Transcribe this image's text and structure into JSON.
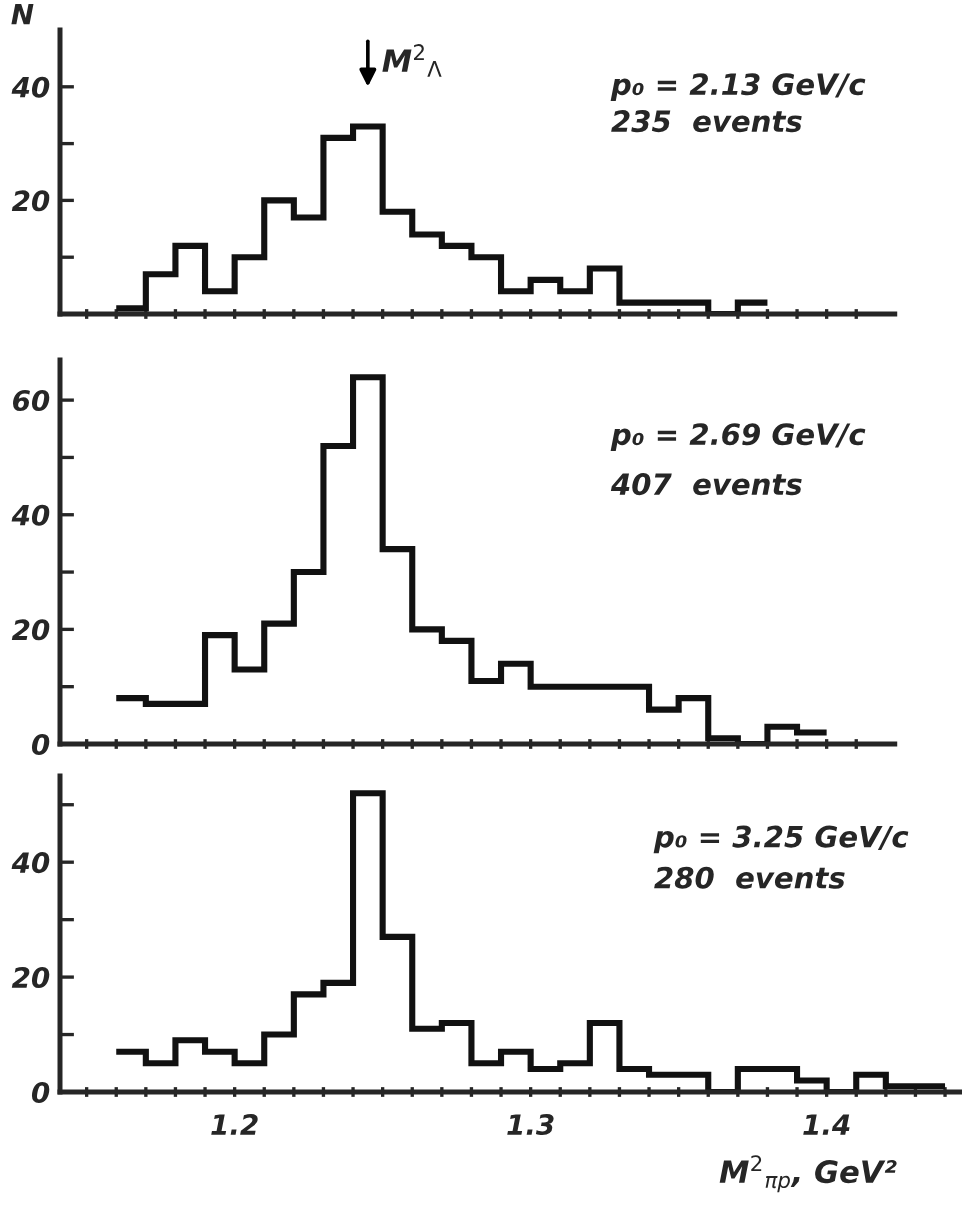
{
  "chart_data": [
    {
      "type": "histogram",
      "color": "#111111",
      "ylabel": "N",
      "bins": [
        1.16,
        1.17,
        1.18,
        1.19,
        1.2,
        1.21,
        1.22,
        1.23,
        1.24,
        1.25,
        1.26,
        1.27,
        1.28,
        1.29,
        1.3,
        1.31,
        1.32,
        1.33,
        1.34,
        1.35,
        1.36,
        1.37,
        1.38
      ],
      "values": [
        1,
        7,
        12,
        4,
        10,
        20,
        17,
        31,
        33,
        18,
        14,
        12,
        10,
        4,
        6,
        4,
        8,
        2,
        2,
        2,
        0,
        2
      ],
      "xlim": [
        1.141,
        1.423
      ],
      "xticks": [
        {
          "value": 1.15,
          "label": null
        },
        {
          "value": 1.16,
          "label": null
        },
        {
          "value": 1.17,
          "label": null
        },
        {
          "value": 1.18,
          "label": null
        },
        {
          "value": 1.19,
          "label": null
        },
        1.2,
        {
          "value": 1.21,
          "label": null
        },
        {
          "value": 1.22,
          "label": null
        },
        {
          "value": 1.23,
          "label": null
        },
        {
          "value": 1.24,
          "label": null
        },
        {
          "value": 1.25,
          "label": null
        },
        {
          "value": 1.26,
          "label": null
        },
        {
          "value": 1.27,
          "label": null
        },
        {
          "value": 1.28,
          "label": null
        },
        {
          "value": 1.29,
          "label": null
        },
        1.3,
        {
          "value": 1.31,
          "label": null
        },
        {
          "value": 1.32,
          "label": null
        },
        {
          "value": 1.33,
          "label": null
        },
        {
          "value": 1.34,
          "label": null
        },
        {
          "value": 1.35,
          "label": null
        },
        {
          "value": 1.36,
          "label": null
        },
        {
          "value": 1.37,
          "label": null
        },
        {
          "value": 1.38,
          "label": null
        },
        {
          "value": 1.39,
          "label": null
        },
        1.4,
        {
          "value": 1.41,
          "label": null
        }
      ],
      "ylim": [
        0,
        50
      ],
      "yticks": [
        {
          "value": 10,
          "label": null
        },
        20,
        {
          "value": 30,
          "label": null
        },
        40
      ],
      "tick_labels": "y",
      "ref_lines": [
        {
          "axis": "x",
          "value": 1.245,
          "label": "M$^{2}$$_{Λ}$"
        }
      ],
      "annotations": [
        "p₀ = 2.13 GeV/c",
        "235  events"
      ]
    },
    {
      "type": "histogram",
      "color": "#111111",
      "bins": [
        1.16,
        1.17,
        1.18,
        1.19,
        1.2,
        1.21,
        1.22,
        1.23,
        1.24,
        1.25,
        1.26,
        1.27,
        1.28,
        1.29,
        1.3,
        1.31,
        1.32,
        1.33,
        1.34,
        1.35,
        1.36,
        1.37,
        1.38,
        1.39,
        1.4
      ],
      "values": [
        8,
        7,
        7,
        19,
        13,
        21,
        30,
        52,
        64,
        34,
        20,
        18,
        11,
        14,
        10,
        10,
        10,
        10,
        6,
        8,
        1,
        0,
        3,
        2
      ],
      "xlim": [
        1.141,
        1.423
      ],
      "xticks": [
        {
          "value": 1.15,
          "label": null
        },
        {
          "value": 1.16,
          "label": null
        },
        {
          "value": 1.17,
          "label": null
        },
        {
          "value": 1.18,
          "label": null
        },
        {
          "value": 1.19,
          "label": null
        },
        1.2,
        {
          "value": 1.21,
          "label": null
        },
        {
          "value": 1.22,
          "label": null
        },
        {
          "value": 1.23,
          "label": null
        },
        {
          "value": 1.24,
          "label": null
        },
        {
          "value": 1.25,
          "label": null
        },
        {
          "value": 1.26,
          "label": null
        },
        {
          "value": 1.27,
          "label": null
        },
        {
          "value": 1.28,
          "label": null
        },
        {
          "value": 1.29,
          "label": null
        },
        1.3,
        {
          "value": 1.31,
          "label": null
        },
        {
          "value": 1.32,
          "label": null
        },
        {
          "value": 1.33,
          "label": null
        },
        {
          "value": 1.34,
          "label": null
        },
        {
          "value": 1.35,
          "label": null
        },
        {
          "value": 1.36,
          "label": null
        },
        {
          "value": 1.37,
          "label": null
        },
        {
          "value": 1.38,
          "label": null
        },
        {
          "value": 1.39,
          "label": null
        },
        1.4,
        {
          "value": 1.41,
          "label": null
        }
      ],
      "ylim": [
        0,
        67
      ],
      "yticks": [
        0,
        {
          "value": 10,
          "label": null
        },
        20,
        {
          "value": 30,
          "label": null
        },
        40,
        {
          "value": 50,
          "label": null
        },
        60
      ],
      "tick_labels": "y",
      "annotations": [
        "p₀ = 2.69 GeV/c",
        "407  events"
      ]
    },
    {
      "type": "histogram",
      "color": "#111111",
      "xlabel": "M$^{2}$$_{πp}$, GeV²",
      "bins": [
        1.16,
        1.17,
        1.18,
        1.19,
        1.2,
        1.21,
        1.22,
        1.23,
        1.24,
        1.25,
        1.26,
        1.27,
        1.28,
        1.29,
        1.3,
        1.31,
        1.32,
        1.33,
        1.34,
        1.35,
        1.36,
        1.37,
        1.38,
        1.39,
        1.4,
        1.41,
        1.42,
        1.43,
        1.44
      ],
      "values": [
        7,
        5,
        9,
        7,
        5,
        10,
        17,
        19,
        52,
        27,
        11,
        12,
        5,
        7,
        4,
        5,
        12,
        4,
        3,
        3,
        0,
        4,
        4,
        2,
        0,
        3,
        1,
        1
      ],
      "xlim": [
        1.141,
        1.445
      ],
      "xticks": [
        {
          "value": 1.15,
          "label": null
        },
        {
          "value": 1.16,
          "label": null
        },
        {
          "value": 1.17,
          "label": null
        },
        {
          "value": 1.18,
          "label": null
        },
        {
          "value": 1.19,
          "label": null
        },
        1.2,
        {
          "value": 1.21,
          "label": null
        },
        {
          "value": 1.22,
          "label": null
        },
        {
          "value": 1.23,
          "label": null
        },
        {
          "value": 1.24,
          "label": null
        },
        {
          "value": 1.25,
          "label": null
        },
        {
          "value": 1.26,
          "label": null
        },
        {
          "value": 1.27,
          "label": null
        },
        {
          "value": 1.28,
          "label": null
        },
        {
          "value": 1.29,
          "label": null
        },
        1.3,
        {
          "value": 1.31,
          "label": null
        },
        {
          "value": 1.32,
          "label": null
        },
        {
          "value": 1.33,
          "label": null
        },
        {
          "value": 1.34,
          "label": null
        },
        {
          "value": 1.35,
          "label": null
        },
        {
          "value": 1.36,
          "label": null
        },
        {
          "value": 1.37,
          "label": null
        },
        {
          "value": 1.38,
          "label": null
        },
        {
          "value": 1.39,
          "label": null
        },
        1.4,
        {
          "value": 1.41,
          "label": null
        },
        {
          "value": 1.42,
          "label": null
        },
        {
          "value": 1.43,
          "label": null
        },
        {
          "value": 1.44,
          "label": null
        }
      ],
      "ylim": [
        0,
        55
      ],
      "yticks": [
        0,
        {
          "value": 10,
          "label": null
        },
        20,
        {
          "value": 30,
          "label": null
        },
        40,
        {
          "value": 50,
          "label": null
        }
      ],
      "annotations": [
        "p₀ = 3.25 GeV/c",
        "280  events"
      ]
    }
  ]
}
